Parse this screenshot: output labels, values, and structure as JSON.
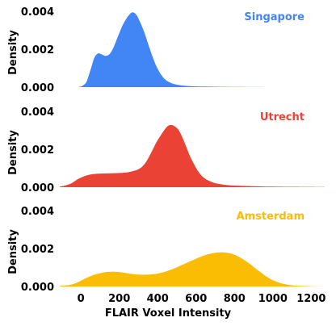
{
  "chart_data": [
    {
      "type": "area",
      "ylabel": "Density",
      "y_ticks": [
        "0.000",
        "0.002",
        "0.004"
      ],
      "ylim": [
        0,
        0.0042
      ],
      "xlim": [
        -110,
        1270
      ],
      "panel_label": "Singapore",
      "color": "#4285F4",
      "series": [
        {
          "name": "Singapore",
          "x": [
            -110,
            -20,
            -5,
            10,
            30,
            50,
            70,
            90,
            110,
            130,
            150,
            170,
            190,
            210,
            230,
            250,
            270,
            290,
            310,
            330,
            350,
            370,
            390,
            410,
            430,
            450,
            480,
            520,
            560,
            600,
            650,
            700,
            800,
            1000,
            1270
          ],
          "values": [
            0,
            0,
            2e-05,
            8e-05,
            0.0003,
            0.0009,
            0.00155,
            0.00178,
            0.00172,
            0.00165,
            0.00175,
            0.0021,
            0.0026,
            0.0031,
            0.0035,
            0.0038,
            0.00395,
            0.0038,
            0.0034,
            0.0029,
            0.0023,
            0.0017,
            0.00118,
            0.00078,
            0.0005,
            0.00032,
            0.00018,
            0.0001,
            6e-05,
            4e-05,
            3e-05,
            2e-05,
            1e-05,
            0,
            0
          ]
        }
      ]
    },
    {
      "type": "area",
      "ylabel": "Density",
      "y_ticks": [
        "0.000",
        "0.002",
        "0.004"
      ],
      "ylim": [
        0,
        0.0042
      ],
      "xlim": [
        -110,
        1270
      ],
      "panel_label": "Utrecht",
      "color": "#EA4335",
      "series": [
        {
          "name": "Utrecht",
          "x": [
            -110,
            -80,
            -50,
            -20,
            10,
            40,
            70,
            100,
            150,
            200,
            250,
            300,
            330,
            360,
            390,
            420,
            450,
            470,
            490,
            510,
            530,
            550,
            570,
            590,
            610,
            640,
            680,
            720,
            780,
            850,
            950,
            1100,
            1270
          ],
          "values": [
            3e-05,
            0.0001,
            0.0002,
            0.0004,
            0.00055,
            0.00065,
            0.0007,
            0.00072,
            0.00073,
            0.00075,
            0.0008,
            0.00095,
            0.0012,
            0.0017,
            0.0023,
            0.0028,
            0.0032,
            0.00328,
            0.0032,
            0.003,
            0.0026,
            0.0021,
            0.0016,
            0.0012,
            0.00085,
            0.0005,
            0.00028,
            0.00017,
            0.0001,
            7e-05,
            4e-05,
            2e-05,
            1e-05
          ]
        }
      ]
    },
    {
      "type": "area",
      "ylabel": "Density",
      "y_ticks": [
        "0.000",
        "0.002",
        "0.004"
      ],
      "ylim": [
        0,
        0.0042
      ],
      "xlim": [
        -110,
        1270
      ],
      "xlabel": "FLAIR Voxel Intensity",
      "x_ticks": [
        "0",
        "200",
        "400",
        "600",
        "800",
        "1000",
        "1200"
      ],
      "x_tick_values": [
        0,
        200,
        400,
        600,
        800,
        1000,
        1200
      ],
      "panel_label": "Amsterdam",
      "color": "#FBBC04",
      "series": [
        {
          "name": "Amsterdam",
          "x": [
            -110,
            -80,
            -50,
            -20,
            10,
            40,
            70,
            100,
            130,
            160,
            190,
            220,
            250,
            280,
            310,
            340,
            370,
            400,
            430,
            460,
            490,
            520,
            550,
            580,
            610,
            640,
            670,
            700,
            730,
            760,
            790,
            820,
            850,
            880,
            910,
            940,
            970,
            1000,
            1050,
            1100,
            1150,
            1200,
            1270
          ],
          "values": [
            3e-05,
            5e-05,
            0.0001,
            0.0002,
            0.00035,
            0.0005,
            0.00062,
            0.0007,
            0.00076,
            0.00078,
            0.00077,
            0.00073,
            0.00068,
            0.00064,
            0.00062,
            0.00062,
            0.00064,
            0.00068,
            0.00075,
            0.00085,
            0.00097,
            0.0011,
            0.00124,
            0.00137,
            0.00151,
            0.00163,
            0.00172,
            0.00178,
            0.0018,
            0.00178,
            0.00171,
            0.00158,
            0.0014,
            0.00119,
            0.00095,
            0.00072,
            0.0005,
            0.00033,
            0.00015,
            6e-05,
            3e-05,
            1e-05,
            0
          ]
        }
      ]
    }
  ]
}
